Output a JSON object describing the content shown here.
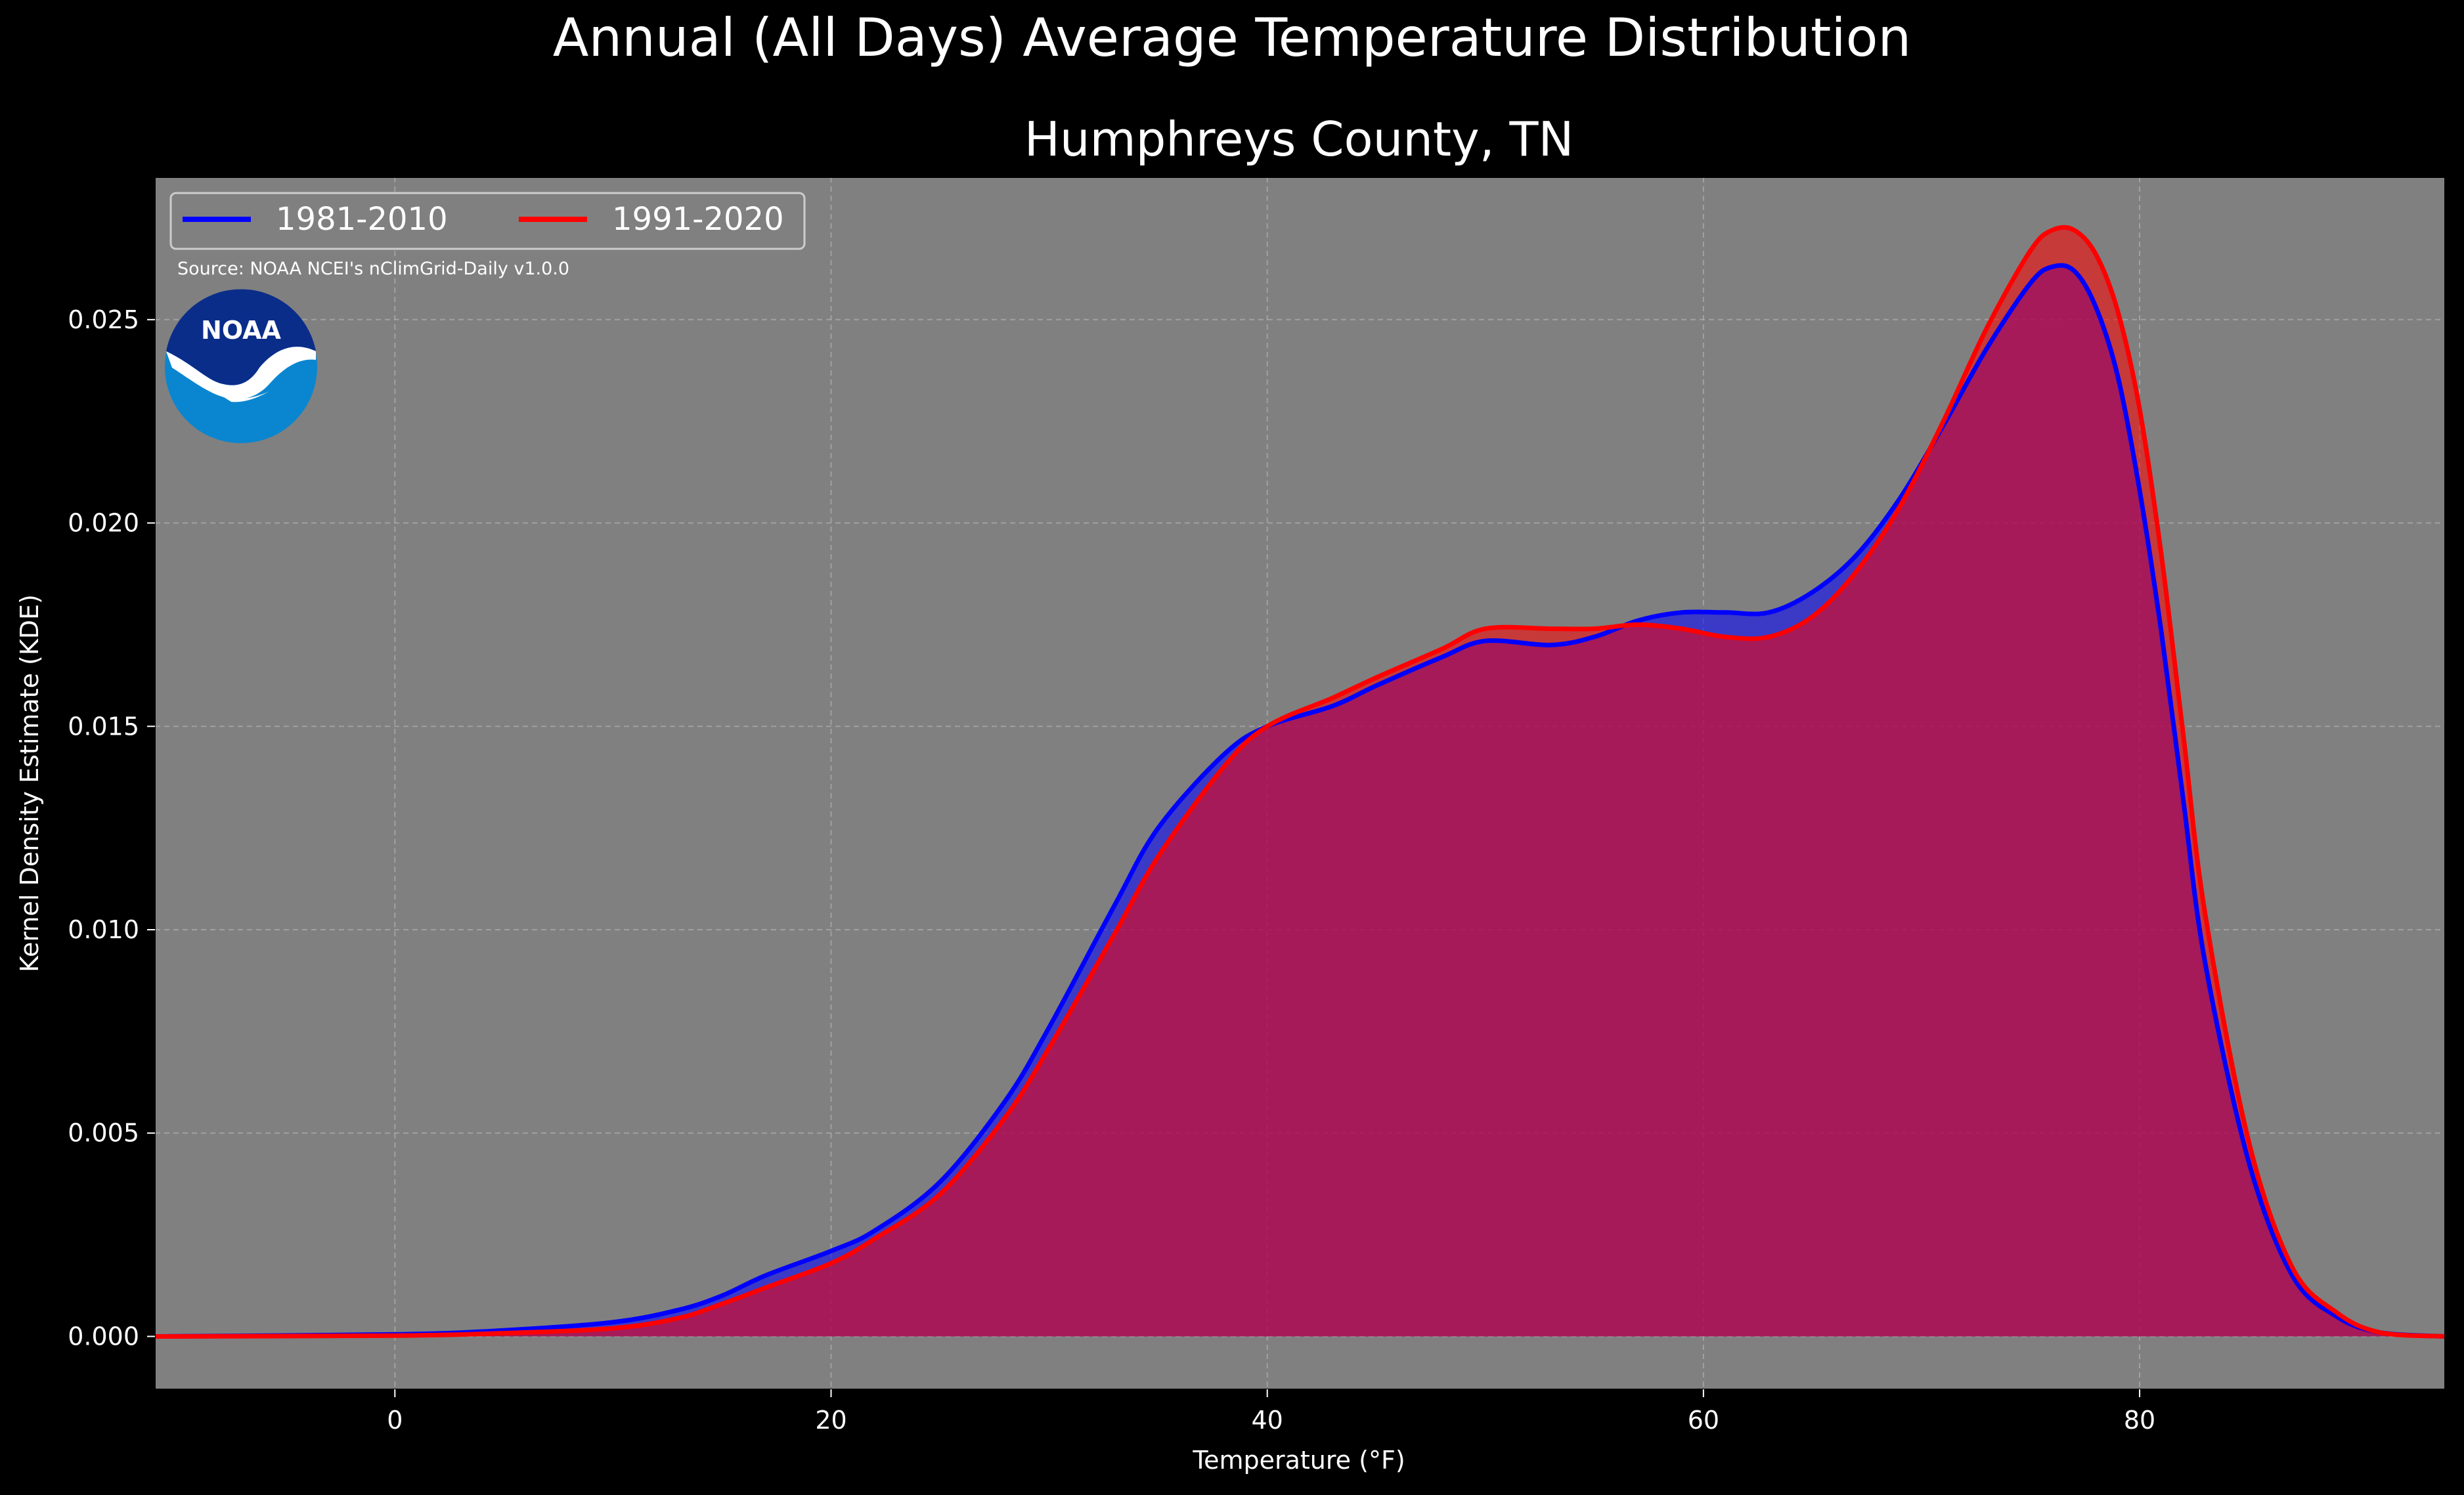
{
  "chart_data": {
    "type": "area",
    "title": "Annual (All Days) Average Temperature Distribution",
    "subtitle": "Humphreys County, TN",
    "xlabel": "Temperature ($^\\circ$F)",
    "xlabel_display": "Temperature (°F)",
    "ylabel": "Kernel Density Estimate (KDE)",
    "xlim": [
      -11,
      94
    ],
    "ylim": [
      -0.0013,
      0.0285
    ],
    "xticks": [
      0,
      20,
      40,
      60,
      80
    ],
    "xtick_labels": [
      "0",
      "20",
      "40",
      "60",
      "80"
    ],
    "yticks": [
      0.0,
      0.005,
      0.01,
      0.015,
      0.02,
      0.025
    ],
    "ytick_labels": [
      "0.000",
      "0.005",
      "0.010",
      "0.015",
      "0.020",
      "0.025"
    ],
    "grid": true,
    "legend_position": "top-left",
    "annotation": "Source: NOAA NCEI's nClimGrid-Daily v1.0.0",
    "logo_text": "NOAA",
    "background_color": "#000000",
    "plot_background": "#808080",
    "series": [
      {
        "name": "1981-2010",
        "color": "#0000ff",
        "x": [
          -11,
          0,
          5,
          10,
          13,
          15,
          17,
          20,
          22,
          25,
          28,
          30,
          33,
          35,
          38,
          40,
          43,
          45,
          48,
          50,
          53,
          55,
          57,
          59,
          61,
          63,
          65,
          67,
          69,
          71,
          73,
          75,
          76,
          77,
          78,
          79,
          80,
          81,
          82,
          83,
          85,
          87,
          89,
          91,
          94
        ],
        "y": [
          0.0,
          5e-05,
          0.00015,
          0.00035,
          0.00065,
          0.001,
          0.0015,
          0.0021,
          0.0026,
          0.0038,
          0.0058,
          0.0076,
          0.0106,
          0.0125,
          0.0143,
          0.015,
          0.0155,
          0.016,
          0.0167,
          0.0171,
          0.017,
          0.0172,
          0.0176,
          0.0178,
          0.0178,
          0.0178,
          0.0183,
          0.0192,
          0.0206,
          0.0224,
          0.0243,
          0.0259,
          0.0263,
          0.0262,
          0.0253,
          0.0236,
          0.0208,
          0.0173,
          0.0132,
          0.0092,
          0.0043,
          0.0015,
          0.0005,
          0.0001,
          0.0
        ]
      },
      {
        "name": "1991-2020",
        "color": "#ff0000",
        "x": [
          -11,
          0,
          5,
          10,
          13,
          15,
          17,
          20,
          22,
          25,
          28,
          30,
          33,
          35,
          38,
          40,
          43,
          45,
          48,
          50,
          53,
          55,
          57,
          59,
          61,
          63,
          65,
          67,
          69,
          71,
          73,
          75,
          76,
          77,
          78,
          79,
          80,
          81,
          82,
          83,
          85,
          87,
          89,
          91,
          94
        ],
        "y": [
          0.0,
          2e-05,
          8e-05,
          0.0002,
          0.00045,
          0.0008,
          0.0012,
          0.0018,
          0.0024,
          0.0035,
          0.0054,
          0.0071,
          0.0099,
          0.0118,
          0.014,
          0.015,
          0.0157,
          0.0162,
          0.0169,
          0.0174,
          0.0174,
          0.0174,
          0.0175,
          0.0174,
          0.0172,
          0.0172,
          0.0177,
          0.0188,
          0.0204,
          0.0225,
          0.0248,
          0.0267,
          0.0272,
          0.0272,
          0.0266,
          0.0252,
          0.0228,
          0.0192,
          0.0148,
          0.0104,
          0.0048,
          0.0017,
          0.0006,
          0.0001,
          0.0
        ]
      }
    ]
  }
}
